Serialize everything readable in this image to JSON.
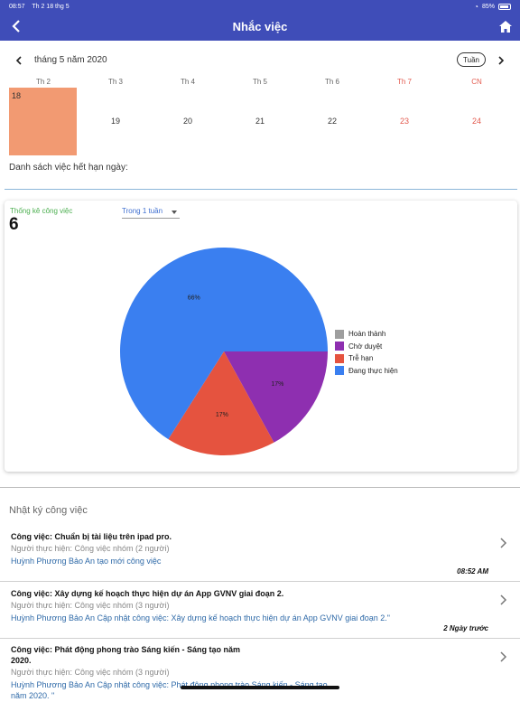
{
  "status_bar": {
    "time": "08:57",
    "date": "Th 2 18 thg 5",
    "battery": "85%"
  },
  "header": {
    "title": "Nhắc việc"
  },
  "calendar": {
    "month_label": "tháng 5 năm 2020",
    "view_mode": "Tuần",
    "weekdays": [
      "Th 2",
      "Th 3",
      "Th 4",
      "Th 5",
      "Th 6",
      "Th 7",
      "CN"
    ],
    "days": [
      "18",
      "19",
      "20",
      "21",
      "22",
      "23",
      "24"
    ],
    "selected_day": "18",
    "selected_color": "#f29a72",
    "weekend_color": "#e35b4f"
  },
  "due_list_label": "Danh sách việc hết hạn ngày:",
  "stats": {
    "label": "Thống kê công việc",
    "count": "6",
    "period": "Trong 1 tuần"
  },
  "chart_data": {
    "type": "pie",
    "slices": [
      {
        "name": "Hoàn thành",
        "value": 0,
        "color": "#9e9e9e",
        "label": ""
      },
      {
        "name": "Chờ duyệt",
        "value": 17,
        "color": "#8e2fb0",
        "label": "17%"
      },
      {
        "name": "Trễ hạn",
        "value": 17,
        "color": "#e5533f",
        "label": "17%"
      },
      {
        "name": "Đang thực hiện",
        "value": 66,
        "color": "#3a7ff0",
        "label": "66%"
      }
    ],
    "legend_position": "right"
  },
  "log": {
    "title": "Nhật ký công việc",
    "items": [
      {
        "task": "Công việc: Chuẩn bị tài liệu trên ipad pro.",
        "owner": "Người thực hiện: Công việc nhóm (2 người)",
        "action": "Huỳnh Phương Bảo An tạo mới công việc",
        "time": "08:52 AM"
      },
      {
        "task": "Công việc: Xây dựng kế hoạch thực hiện dự án App GVNV giai đoạn 2.",
        "owner": "Người thực hiện: Công việc nhóm (3 người)",
        "action": "Huỳnh Phương Bảo An Cập nhật công việc: Xây dựng kế hoạch thực hiện dự án App GVNV giai đoạn 2.\"",
        "time": "2 Ngày trước"
      },
      {
        "task": "Công việc: Phát động phong trào Sáng kiến - Sáng tạo năm 2020.",
        "owner": "Người thực hiện: Công việc nhóm (3 người)",
        "action": "Huỳnh Phương Bảo An Cập nhật công việc: Phát động phong trào Sáng kiến - Sáng tạo năm 2020. \"",
        "time": ""
      }
    ]
  }
}
